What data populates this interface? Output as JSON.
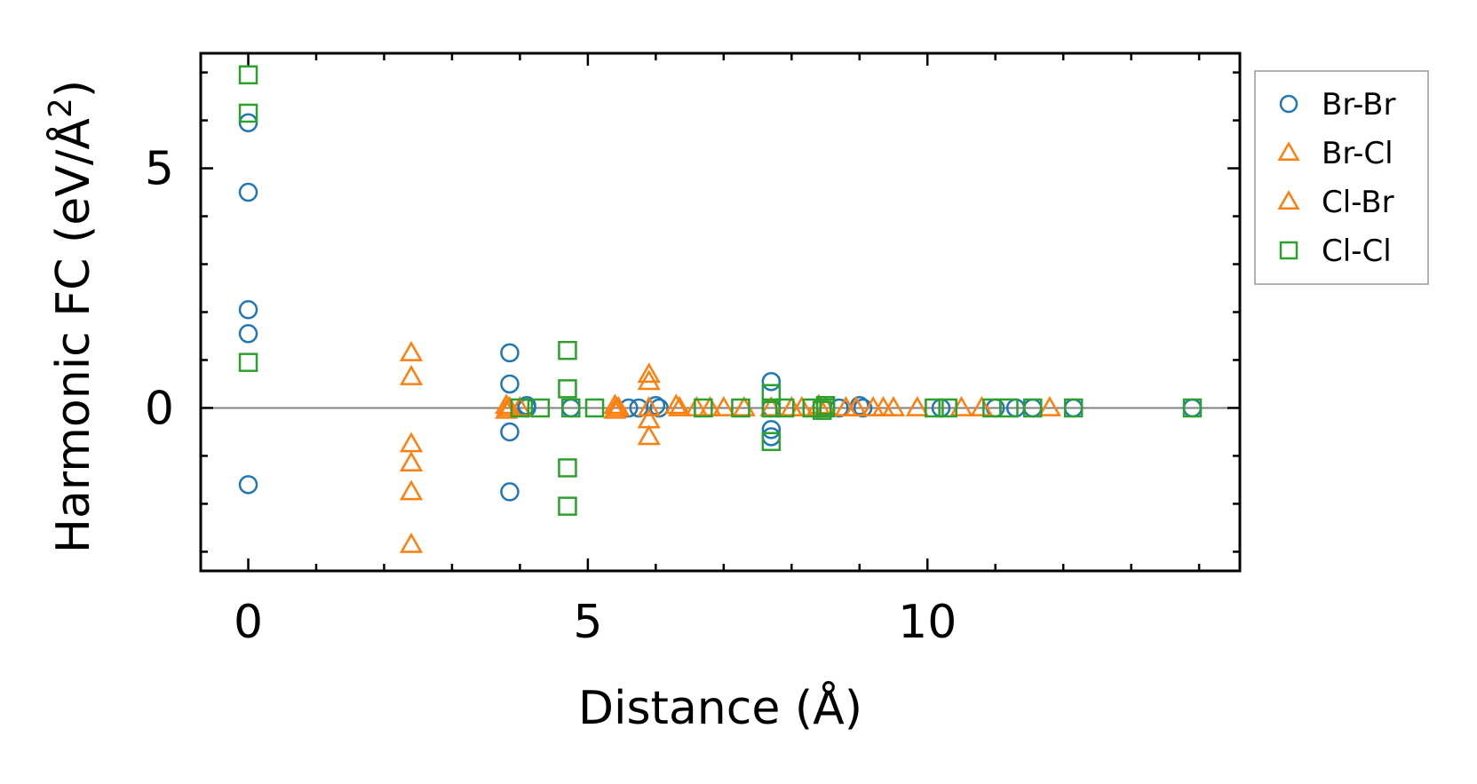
{
  "chart_data": {
    "type": "scatter",
    "title": "",
    "xlabel": "Distance (Å)",
    "ylabel": "Harmonic FC (eV/Å²)",
    "xlim": [
      -0.7,
      14.6
    ],
    "ylim": [
      -3.4,
      7.4
    ],
    "xticks": [
      0,
      5,
      10
    ],
    "xtick_labels": [
      "0",
      "5",
      "10"
    ],
    "yticks": [
      0,
      5
    ],
    "ytick_labels": [
      "0",
      "5"
    ],
    "x_minor_step": 1,
    "y_minor_step": 1,
    "zero_line": true,
    "grid": false,
    "legend": "outside-right-top",
    "series": [
      {
        "name": "Br-Br",
        "marker": "circle",
        "color": "#1f77b4",
        "points": [
          [
            0,
            5.95
          ],
          [
            0,
            4.5
          ],
          [
            0,
            2.05
          ],
          [
            0,
            1.55
          ],
          [
            0,
            -1.6
          ],
          [
            3.85,
            1.15
          ],
          [
            3.85,
            0.5
          ],
          [
            3.85,
            -0.5
          ],
          [
            3.85,
            -1.75
          ],
          [
            4.1,
            0.05
          ],
          [
            4.1,
            0.0
          ],
          [
            4.75,
            0.0
          ],
          [
            5.6,
            0.0
          ],
          [
            5.75,
            0.0
          ],
          [
            6.0,
            0.05
          ],
          [
            6.05,
            0.0
          ],
          [
            7.7,
            0.55
          ],
          [
            7.7,
            0.0
          ],
          [
            7.7,
            -0.45
          ],
          [
            7.7,
            -0.6
          ],
          [
            8.7,
            0.0
          ],
          [
            9.0,
            0.05
          ],
          [
            9.05,
            0.0
          ],
          [
            10.2,
            0.0
          ],
          [
            11.0,
            0.0
          ],
          [
            11.3,
            0.0
          ],
          [
            11.55,
            0.0
          ],
          [
            12.15,
            0.0
          ],
          [
            13.9,
            0.0
          ]
        ]
      },
      {
        "name": "Br-Cl",
        "marker": "triangle",
        "color": "#ff7f0e",
        "points": [
          [
            2.4,
            1.15
          ],
          [
            2.4,
            0.65
          ],
          [
            2.4,
            -0.75
          ],
          [
            2.4,
            -1.15
          ],
          [
            2.4,
            -1.75
          ],
          [
            2.4,
            -2.85
          ],
          [
            3.8,
            0.05
          ],
          [
            3.8,
            -0.05
          ],
          [
            5.4,
            0.05
          ],
          [
            5.4,
            -0.05
          ],
          [
            5.9,
            0.7
          ],
          [
            5.9,
            0.55
          ],
          [
            5.9,
            0.0
          ],
          [
            5.9,
            -0.25
          ],
          [
            5.9,
            -0.6
          ],
          [
            6.3,
            0.05
          ],
          [
            6.6,
            0.0
          ],
          [
            7.0,
            0.0
          ],
          [
            7.7,
            0.0
          ],
          [
            8.0,
            0.0
          ],
          [
            8.4,
            0.05
          ],
          [
            8.8,
            0.0
          ],
          [
            9.2,
            0.0
          ],
          [
            9.5,
            0.0
          ],
          [
            9.85,
            0.0
          ],
          [
            10.5,
            0.0
          ],
          [
            10.8,
            0.0
          ],
          [
            11.8,
            0.0
          ]
        ]
      },
      {
        "name": "Cl-Br",
        "marker": "triangle",
        "color": "#ff7f0e",
        "points": [
          [
            3.85,
            0.0
          ],
          [
            4.0,
            0.0
          ],
          [
            5.45,
            0.0
          ],
          [
            6.35,
            0.0
          ],
          [
            6.8,
            0.0
          ],
          [
            7.3,
            0.0
          ],
          [
            8.15,
            0.0
          ],
          [
            8.5,
            0.0
          ],
          [
            8.95,
            0.0
          ],
          [
            9.35,
            0.0
          ]
        ]
      },
      {
        "name": "Cl-Cl",
        "marker": "square",
        "color": "#2ca02c",
        "points": [
          [
            0,
            6.95
          ],
          [
            0,
            6.15
          ],
          [
            0,
            0.95
          ],
          [
            4.7,
            1.2
          ],
          [
            4.7,
            0.4
          ],
          [
            4.7,
            -1.25
          ],
          [
            4.7,
            -2.05
          ],
          [
            4.0,
            0.0
          ],
          [
            4.3,
            0.0
          ],
          [
            4.75,
            0.0
          ],
          [
            5.1,
            0.0
          ],
          [
            6.7,
            0.0
          ],
          [
            7.25,
            0.0
          ],
          [
            7.7,
            0.3
          ],
          [
            7.7,
            0.0
          ],
          [
            7.7,
            -0.7
          ],
          [
            7.9,
            0.0
          ],
          [
            8.3,
            0.0
          ],
          [
            8.45,
            -0.05
          ],
          [
            8.5,
            0.0
          ],
          [
            8.5,
            0.05
          ],
          [
            10.1,
            0.0
          ],
          [
            10.3,
            0.0
          ],
          [
            10.95,
            0.0
          ],
          [
            11.2,
            0.0
          ],
          [
            11.55,
            0.0
          ],
          [
            12.15,
            0.0
          ],
          [
            13.9,
            0.0
          ]
        ]
      }
    ]
  }
}
